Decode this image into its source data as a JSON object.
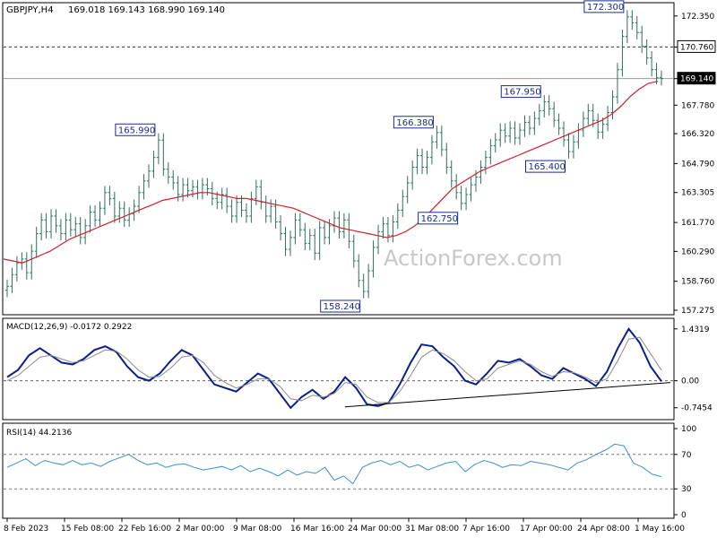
{
  "header": {
    "symbol_label": "GBPJPY,H4",
    "ohlc": "169.018 169.143 168.990 169.140"
  },
  "watermark": "ActionForex.com",
  "colors": {
    "background": "#ffffff",
    "candles": "#2f6f5e",
    "ma_line": "#d11f2a",
    "macd_line": "#0b1f8c",
    "signal_line": "#8c8c8c",
    "rsi_line": "#3d8fd6",
    "label_text": "#1a2c8c",
    "label_border": "#1a2c8c",
    "trendline": "#000000",
    "current_price_bg": "#000000",
    "current_price_text": "#ffffff"
  },
  "chart_data": [
    {
      "type": "candlestick",
      "panel": "price",
      "ylim": [
        157.275,
        172.8
      ],
      "y_ticks": [
        "172.350",
        "170.760",
        "169.140",
        "167.780",
        "166.320",
        "164.790",
        "163.305",
        "161.770",
        "160.290",
        "158.760",
        "157.275"
      ],
      "x_ticks": [
        "8 Feb 2023",
        "15 Feb 08:00",
        "22 Feb 16:00",
        "2 Mar 00:00",
        "9 Mar 08:00",
        "16 Mar 16:00",
        "24 Mar 00:00",
        "31 Mar 08:00",
        "7 Apr 16:00",
        "17 Apr 00:00",
        "24 Apr 08:00",
        "1 May 16:00"
      ],
      "close_series": [
        158.5,
        159.1,
        159.7,
        159.9,
        159.2,
        160.3,
        161.2,
        161.9,
        161.3,
        162.1,
        161.6,
        161.2,
        161.9,
        161.4,
        161.7,
        161.0,
        161.6,
        162.3,
        161.9,
        162.5,
        163.3,
        163.0,
        162.1,
        162.5,
        161.9,
        162.2,
        162.6,
        163.3,
        163.9,
        164.4,
        165.1,
        165.99,
        164.5,
        164.1,
        163.8,
        163.2,
        163.7,
        163.4,
        163.6,
        163.3,
        163.7,
        163.5,
        163.0,
        162.8,
        163.2,
        162.6,
        162.1,
        162.8,
        162.4,
        162.1,
        163.0,
        163.6,
        162.8,
        162.1,
        162.6,
        161.8,
        161.2,
        160.4,
        161.0,
        161.9,
        161.4,
        160.7,
        161.1,
        160.2,
        161.5,
        161.0,
        161.6,
        162.0,
        161.3,
        161.9,
        160.8,
        159.8,
        158.8,
        158.24,
        159.3,
        160.5,
        161.3,
        161.7,
        161.1,
        161.8,
        162.4,
        163.1,
        163.8,
        164.6,
        165.2,
        164.6,
        165.1,
        165.9,
        166.38,
        165.5,
        164.6,
        163.9,
        163.3,
        162.75,
        163.2,
        163.7,
        164.1,
        164.6,
        165.1,
        165.7,
        166.0,
        166.5,
        166.2,
        166.6,
        166.1,
        166.5,
        166.9,
        166.6,
        167.1,
        167.5,
        167.95,
        167.6,
        167.0,
        166.6,
        166.0,
        165.4,
        165.9,
        166.5,
        167.1,
        167.5,
        167.0,
        166.4,
        166.8,
        167.4,
        168.2,
        169.6,
        171.3,
        172.3,
        172.0,
        171.5,
        170.8,
        170.2,
        169.6,
        169.2,
        169.14
      ],
      "ma_series": [
        159.9,
        159.8,
        159.7,
        159.9,
        160.1,
        160.3,
        160.6,
        160.9,
        161.1,
        161.3,
        161.5,
        161.7,
        161.9,
        162.1,
        162.3,
        162.5,
        162.7,
        162.9,
        163.0,
        163.1,
        163.2,
        163.3,
        163.3,
        163.2,
        163.1,
        163.0,
        163.0,
        162.9,
        162.8,
        162.7,
        162.6,
        162.5,
        162.3,
        162.1,
        161.9,
        161.7,
        161.5,
        161.4,
        161.3,
        161.2,
        161.1,
        161.0,
        161.1,
        161.3,
        161.6,
        162.0,
        162.5,
        163.0,
        163.5,
        163.8,
        164.1,
        164.4,
        164.6,
        164.8,
        165.0,
        165.2,
        165.4,
        165.6,
        165.8,
        166.0,
        166.2,
        166.4,
        166.6,
        166.8,
        167.0,
        167.3,
        167.7,
        168.2,
        168.6,
        168.9,
        169.0
      ],
      "ma_start_index": 0,
      "annotations": [
        {
          "label": "165.990",
          "x_index": 31
        },
        {
          "label": "158.240",
          "x_index": 73
        },
        {
          "label": "166.380",
          "x_index": 88
        },
        {
          "label": "162.750",
          "x_index": 93
        },
        {
          "label": "167.950",
          "x_index": 110
        },
        {
          "label": "165.400",
          "x_index": 115
        },
        {
          "label": "172.300",
          "x_index": 127
        }
      ],
      "horizontal_lines": [
        {
          "label": "170.760",
          "value": 170.76,
          "style": "dashed"
        },
        {
          "label": "169.140",
          "value": 169.14,
          "style": "solid",
          "current": true
        }
      ]
    },
    {
      "type": "line",
      "panel": "macd",
      "title": "MACD(12,26,9) -0.0172 0.2922",
      "ylim": [
        -0.95,
        1.55
      ],
      "y_ticks": [
        "1.4319",
        "0.00",
        "-0.7454"
      ],
      "series": [
        {
          "name": "MACD",
          "values": [
            0.1,
            0.3,
            0.7,
            0.9,
            0.7,
            0.5,
            0.45,
            0.6,
            0.85,
            0.95,
            0.8,
            0.4,
            0.1,
            0.0,
            0.2,
            0.55,
            0.85,
            0.7,
            0.3,
            -0.1,
            -0.2,
            -0.3,
            -0.05,
            0.2,
            0.05,
            -0.35,
            -0.75,
            -0.45,
            -0.25,
            -0.5,
            -0.3,
            0.1,
            -0.2,
            -0.65,
            -0.7,
            -0.6,
            -0.1,
            0.5,
            1.0,
            0.95,
            0.65,
            0.4,
            0.0,
            -0.1,
            0.2,
            0.55,
            0.5,
            0.6,
            0.4,
            0.15,
            0.05,
            0.35,
            0.2,
            0.05,
            -0.15,
            0.25,
            0.9,
            1.43,
            1.05,
            0.4,
            -0.0172
          ]
        },
        {
          "name": "Signal",
          "values": [
            0.0,
            0.15,
            0.4,
            0.65,
            0.7,
            0.6,
            0.5,
            0.55,
            0.7,
            0.85,
            0.82,
            0.6,
            0.3,
            0.1,
            0.12,
            0.35,
            0.65,
            0.7,
            0.5,
            0.15,
            -0.05,
            -0.2,
            -0.1,
            0.05,
            0.05,
            -0.15,
            -0.5,
            -0.55,
            -0.4,
            -0.45,
            -0.35,
            -0.05,
            -0.1,
            -0.45,
            -0.6,
            -0.6,
            -0.3,
            0.15,
            0.65,
            0.85,
            0.75,
            0.55,
            0.25,
            0.0,
            0.05,
            0.35,
            0.45,
            0.55,
            0.45,
            0.25,
            0.12,
            0.25,
            0.22,
            0.1,
            -0.05,
            0.05,
            0.55,
            1.15,
            1.2,
            0.75,
            0.2922
          ]
        }
      ],
      "trendline_label": ""
    },
    {
      "type": "line",
      "panel": "rsi",
      "title": "RSI(14) 44.2136",
      "ylim": [
        0,
        100
      ],
      "y_ticks": [
        "100",
        "70",
        "30",
        "0"
      ],
      "levels": [
        70,
        30
      ],
      "series": [
        {
          "name": "RSI",
          "values": [
            55,
            60,
            65,
            57,
            63,
            60,
            58,
            63,
            58,
            60,
            56,
            62,
            66,
            70,
            63,
            58,
            60,
            55,
            58,
            59,
            55,
            52,
            54,
            56,
            52,
            57,
            50,
            54,
            50,
            45,
            52,
            46,
            50,
            48,
            55,
            40,
            45,
            36,
            55,
            60,
            63,
            58,
            62,
            55,
            58,
            52,
            56,
            60,
            62,
            50,
            58,
            63,
            60,
            55,
            58,
            57,
            62,
            60,
            58,
            55,
            52,
            60,
            64,
            70,
            75,
            82,
            80,
            60,
            55,
            47,
            44.2
          ]
        }
      ]
    }
  ]
}
